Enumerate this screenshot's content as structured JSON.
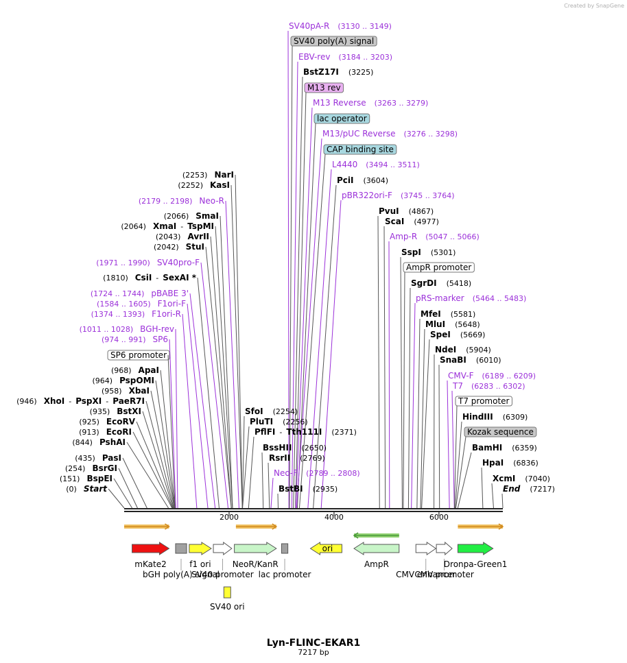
{
  "credit": "Created by SnapGene",
  "title": "Lyn-FLINC-EKAR1",
  "subtitle": "7217 bp",
  "length": 7217,
  "axis_ticks": [
    {
      "value": 2000,
      "label": "2000"
    },
    {
      "value": 4000,
      "label": "4000"
    },
    {
      "value": 6000,
      "label": "6000"
    }
  ],
  "colors": {
    "primer": "#9b30d9",
    "enzyme_line": "#555555",
    "backbone": "#222222"
  },
  "labels": [
    {
      "kind": "enzyme",
      "name": "NarI",
      "pos": "(2253)",
      "site": 2253
    },
    {
      "kind": "enzyme",
      "name": "KasI",
      "pos": "(2252)",
      "site": 2252
    },
    {
      "kind": "primer",
      "name": "Neo-R",
      "pos": "(2179 .. 2198)",
      "site": 2189
    },
    {
      "kind": "enzyme",
      "name": "SmaI",
      "pos": "(2066)",
      "site": 2066
    },
    {
      "kind": "enzyme",
      "name": "XmaI",
      "name2": "TspMI",
      "pos": "(2064)",
      "site": 2064
    },
    {
      "kind": "enzyme",
      "name": "AvrII",
      "pos": "(2043)",
      "site": 2043
    },
    {
      "kind": "enzyme",
      "name": "StuI",
      "pos": "(2042)",
      "site": 2042
    },
    {
      "kind": "primer",
      "name": "SV40pro-F",
      "pos": "(1971 .. 1990)",
      "site": 1981
    },
    {
      "kind": "enzyme",
      "name": "CsiI",
      "name2": "SexAI *",
      "pos": "(1810)",
      "site": 1810
    },
    {
      "kind": "primer",
      "name": "pBABE 3'",
      "pos": "(1724 .. 1744)",
      "site": 1734
    },
    {
      "kind": "primer",
      "name": "F1ori-F",
      "pos": "(1584 .. 1605)",
      "site": 1595
    },
    {
      "kind": "primer",
      "name": "F1ori-R",
      "pos": "(1374 .. 1393)",
      "site": 1384
    },
    {
      "kind": "primer",
      "name": "BGH-rev",
      "pos": "(1011 .. 1028)",
      "site": 1020
    },
    {
      "kind": "primer",
      "name": "SP6",
      "pos": "(974 .. 991)",
      "site": 983
    },
    {
      "kind": "feature",
      "name": "SP6 promoter",
      "fill": "#ffffff",
      "site": 970
    },
    {
      "kind": "enzyme",
      "name": "ApaI",
      "pos": "(968)",
      "site": 968
    },
    {
      "kind": "enzyme",
      "name": "PspOMI",
      "pos": "(964)",
      "site": 964
    },
    {
      "kind": "enzyme",
      "name": "XbaI",
      "pos": "(958)",
      "site": 958
    },
    {
      "kind": "enzyme",
      "name": "XhoI",
      "name2": "PspXI",
      "name3": "PaeR7I",
      "pos": "(946)",
      "site": 946
    },
    {
      "kind": "enzyme",
      "name": "BstXI",
      "pos": "(935)",
      "site": 935
    },
    {
      "kind": "enzyme",
      "name": "EcoRV",
      "pos": "(925)",
      "site": 925
    },
    {
      "kind": "enzyme",
      "name": "EcoRI",
      "pos": "(913)",
      "site": 913
    },
    {
      "kind": "enzyme",
      "name": "PshAI",
      "pos": "(844)",
      "site": 844
    },
    {
      "kind": "enzyme",
      "name": "PasI",
      "pos": "(435)",
      "site": 435
    },
    {
      "kind": "enzyme",
      "name": "BsrGI",
      "pos": "(254)",
      "site": 254
    },
    {
      "kind": "enzyme",
      "name": "BspEI",
      "pos": "(151)",
      "site": 151
    },
    {
      "kind": "enzyme",
      "name": "Start",
      "italic": true,
      "pos": "(0)",
      "site": 0
    },
    {
      "kind": "primer",
      "name": "SV40pA-R",
      "pos": "(3130 .. 3149)",
      "site": 3140
    },
    {
      "kind": "feature",
      "name": "SV40 poly(A) signal",
      "fill": "#c8c8c8",
      "site": 3150
    },
    {
      "kind": "primer",
      "name": "EBV-rev",
      "pos": "(3184 .. 3203)",
      "site": 3194
    },
    {
      "kind": "enzyme",
      "name": "BstZ17I",
      "pos": "(3225)",
      "site": 3225
    },
    {
      "kind": "feature",
      "name": "M13 rev",
      "fill": "#e8b0f0",
      "site": 3265
    },
    {
      "kind": "primer",
      "name": "M13 Reverse",
      "pos": "(3263 .. 3279)",
      "site": 3271
    },
    {
      "kind": "feature",
      "name": "lac operator",
      "fill": "#a8d8e0",
      "site": 3300
    },
    {
      "kind": "primer",
      "name": "M13/pUC Reverse",
      "pos": "(3276 .. 3298)",
      "site": 3287
    },
    {
      "kind": "feature",
      "name": "CAP binding site",
      "fill": "#a8d8e0",
      "site": 3340
    },
    {
      "kind": "primer",
      "name": "L4440",
      "pos": "(3494 .. 3511)",
      "site": 3502
    },
    {
      "kind": "enzyme",
      "name": "PciI",
      "pos": "(3604)",
      "site": 3604
    },
    {
      "kind": "primer",
      "name": "pBR322ori-F",
      "pos": "(3745 .. 3764)",
      "site": 3755
    },
    {
      "kind": "enzyme",
      "name": "SfoI",
      "pos": "(2254)",
      "site": 2254
    },
    {
      "kind": "enzyme",
      "name": "PluTI",
      "pos": "(2256)",
      "site": 2256
    },
    {
      "kind": "enzyme",
      "name": "PflFI",
      "name2": "Tth111I",
      "pos": "(2371)",
      "site": 2371
    },
    {
      "kind": "enzyme",
      "name": "BssHII",
      "pos": "(2650)",
      "site": 2650
    },
    {
      "kind": "enzyme",
      "name": "RsrII",
      "pos": "(2769)",
      "site": 2769
    },
    {
      "kind": "primer",
      "name": "Neo-F",
      "pos": "(2789 .. 2808)",
      "site": 2798
    },
    {
      "kind": "enzyme",
      "name": "BstBI",
      "pos": "(2935)",
      "site": 2935
    },
    {
      "kind": "enzyme",
      "name": "PvuI",
      "pos": "(4867)",
      "site": 4867
    },
    {
      "kind": "enzyme",
      "name": "ScaI",
      "pos": "(4977)",
      "site": 4977
    },
    {
      "kind": "primer",
      "name": "Amp-R",
      "pos": "(5047 .. 5066)",
      "site": 5057
    },
    {
      "kind": "enzyme",
      "name": "SspI",
      "pos": "(5301)",
      "site": 5301
    },
    {
      "kind": "feature",
      "name": "AmpR promoter",
      "fill": "#ffffff",
      "site": 5320
    },
    {
      "kind": "enzyme",
      "name": "SgrDI",
      "pos": "(5418)",
      "site": 5418
    },
    {
      "kind": "primer",
      "name": "pRS-marker",
      "pos": "(5464 .. 5483)",
      "site": 5474
    },
    {
      "kind": "enzyme",
      "name": "MfeI",
      "pos": "(5581)",
      "site": 5581
    },
    {
      "kind": "enzyme",
      "name": "MluI",
      "pos": "(5648)",
      "site": 5648
    },
    {
      "kind": "enzyme",
      "name": "SpeI",
      "pos": "(5669)",
      "site": 5669
    },
    {
      "kind": "enzyme",
      "name": "NdeI",
      "pos": "(5904)",
      "site": 5904
    },
    {
      "kind": "enzyme",
      "name": "SnaBI",
      "pos": "(6010)",
      "site": 6010
    },
    {
      "kind": "primer",
      "name": "CMV-F",
      "pos": "(6189 .. 6209)",
      "site": 6199
    },
    {
      "kind": "primer",
      "name": "T7",
      "pos": "(6283 .. 6302)",
      "site": 6292
    },
    {
      "kind": "feature",
      "name": "T7 promoter",
      "fill": "#ffffff",
      "site": 6295
    },
    {
      "kind": "enzyme",
      "name": "HindIII",
      "pos": "(6309)",
      "site": 6309
    },
    {
      "kind": "feature",
      "name": "Kozak sequence",
      "fill": "#c8c8c8",
      "site": 6320
    },
    {
      "kind": "enzyme",
      "name": "BamHI",
      "pos": "(6359)",
      "site": 6359
    },
    {
      "kind": "enzyme",
      "name": "HpaI",
      "pos": "(6836)",
      "site": 6836
    },
    {
      "kind": "enzyme",
      "name": "XcmI",
      "pos": "(7040)",
      "site": 7040
    },
    {
      "kind": "enzyme",
      "name": "End",
      "italic": true,
      "pos": "(7217)",
      "site": 7217
    }
  ],
  "features": [
    {
      "name": "mKate2",
      "start": 151,
      "end": 856,
      "dir": 1,
      "color": "#ee1111",
      "label_row": 1
    },
    {
      "name": "bGH poly(A) signal",
      "start": 980,
      "end": 1190,
      "dir": 0,
      "color": "#a0a0a0",
      "label_row": 2
    },
    {
      "name": "f1 ori",
      "start": 1240,
      "end": 1660,
      "dir": 1,
      "color": "#ffff33",
      "label_row": 1
    },
    {
      "name": "SV40 promoter",
      "start": 1700,
      "end": 2050,
      "dir": 1,
      "color": "#ffffff",
      "label_row": 2
    },
    {
      "name": "SV40 ori",
      "start": 1900,
      "end": 2030,
      "dir": 0,
      "color": "#ffff33",
      "label_row": 3
    },
    {
      "name": "NeoR/KanR",
      "start": 2100,
      "end": 2900,
      "dir": 1,
      "color": "#c8f5c8",
      "label_row": 1
    },
    {
      "name": "lac promoter",
      "start": 3000,
      "end": 3120,
      "dir": 0,
      "color": "#a0a0a0",
      "label_row": 2
    },
    {
      "name": "ori",
      "start": 3550,
      "end": 4150,
      "dir": -1,
      "color": "#ffff33",
      "label_row": 0
    },
    {
      "name": "AmpR",
      "start": 4380,
      "end": 5240,
      "dir": -1,
      "color": "#c8f5c8",
      "label_row": 1
    },
    {
      "name": "CMV enhancer",
      "start": 5560,
      "end": 5940,
      "dir": 1,
      "color": "#ffffff",
      "label_row": 2
    },
    {
      "name": "CMV promoter",
      "start": 5950,
      "end": 6250,
      "dir": 1,
      "color": "#ffffff",
      "label_row": 2
    },
    {
      "name": "Dronpa-Green1",
      "start": 6360,
      "end": 7030,
      "dir": 1,
      "color": "#22ee44",
      "label_row": 1
    }
  ],
  "orfs": [
    {
      "start": 0,
      "end": 856,
      "dir": 1
    },
    {
      "start": 2130,
      "end": 2900,
      "dir": 1
    },
    {
      "start": 4380,
      "end": 5240,
      "dir": -1
    },
    {
      "start": 6360,
      "end": 7217,
      "dir": 1
    }
  ]
}
